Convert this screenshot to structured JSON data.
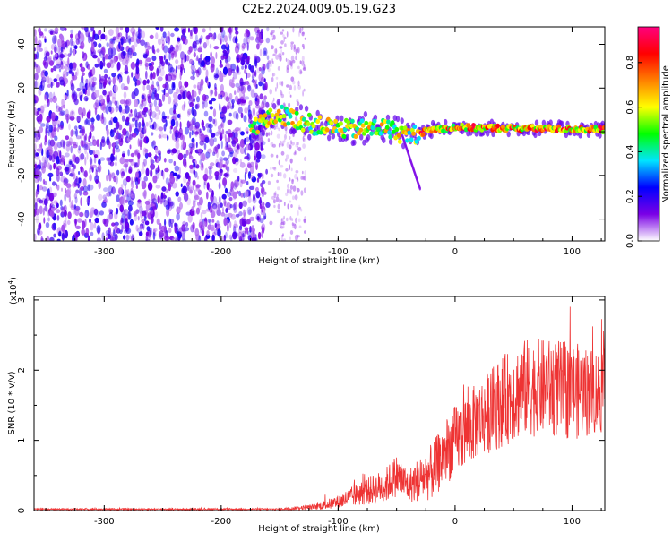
{
  "title": "C2E2.2024.009.05.19.G23",
  "chart_data": [
    {
      "type": "heatmap",
      "xlabel": "Height of straight line (km)",
      "ylabel": "Frequency (Hz)",
      "xlim": [
        -360,
        128
      ],
      "ylim": [
        -50,
        48
      ],
      "xticks": [
        -300,
        -200,
        -100,
        0,
        100
      ],
      "yticks": [
        -40,
        -20,
        0,
        20,
        40
      ],
      "colorbar": {
        "label": "Normalized spectral amplitude",
        "range": [
          0,
          0.96
        ],
        "ticks": [
          0.0,
          0.2,
          0.4,
          0.6,
          0.8
        ],
        "colors": [
          "#ffffff",
          "#7a00e6",
          "#0000ff",
          "#00e5ff",
          "#00ff00",
          "#ffff00",
          "#ff8000",
          "#ff0000",
          "#ff0080"
        ]
      },
      "regions": [
        {
          "name": "noise",
          "x": [
            -360,
            -160
          ],
          "freq": [
            -50,
            48
          ],
          "amplitude": 0.15
        },
        {
          "name": "fringe",
          "x": [
            -160,
            -128
          ],
          "freq": [
            -50,
            48
          ],
          "amplitude": 0.05
        },
        {
          "name": "signal",
          "x": [
            -175,
            128
          ],
          "center_freq_hz": [
            [
              -175,
              2
            ],
            [
              -150,
              8
            ],
            [
              -120,
              3
            ],
            [
              -90,
              1
            ],
            [
              -60,
              2
            ],
            [
              -40,
              -2
            ],
            [
              -20,
              1
            ],
            [
              0,
              2
            ],
            [
              128,
              1
            ]
          ],
          "amplitude": 0.8
        }
      ]
    },
    {
      "type": "line",
      "xlabel": "Height of straight line (km)",
      "ylabel": "SNR (10 * v/v)",
      "yscale_label": "(x10",
      "yscale_exp": "4",
      "yscale_tail": ")",
      "xlim": [
        -360,
        128
      ],
      "ylim": [
        0,
        3.05
      ],
      "xticks": [
        -300,
        -200,
        -100,
        0,
        100
      ],
      "yticks": [
        0,
        1,
        2,
        3
      ],
      "color": "#ee3333",
      "envelope": [
        {
          "x": -360,
          "mean": 0.02,
          "spread": 0.01
        },
        {
          "x": -150,
          "mean": 0.02,
          "spread": 0.01
        },
        {
          "x": -120,
          "mean": 0.05,
          "spread": 0.04
        },
        {
          "x": -100,
          "mean": 0.12,
          "spread": 0.1
        },
        {
          "x": -80,
          "mean": 0.25,
          "spread": 0.18
        },
        {
          "x": -60,
          "mean": 0.35,
          "spread": 0.25
        },
        {
          "x": -50,
          "mean": 0.5,
          "spread": 0.3
        },
        {
          "x": -40,
          "mean": 0.35,
          "spread": 0.25
        },
        {
          "x": -20,
          "mean": 0.55,
          "spread": 0.4
        },
        {
          "x": 0,
          "mean": 1.0,
          "spread": 0.5
        },
        {
          "x": 20,
          "mean": 1.3,
          "spread": 0.55
        },
        {
          "x": 40,
          "mean": 1.55,
          "spread": 0.65
        },
        {
          "x": 60,
          "mean": 1.75,
          "spread": 0.7
        },
        {
          "x": 80,
          "mean": 1.75,
          "spread": 0.7
        },
        {
          "x": 100,
          "mean": 1.7,
          "spread": 0.7
        },
        {
          "x": 128,
          "mean": 1.7,
          "spread": 0.6
        }
      ]
    }
  ]
}
